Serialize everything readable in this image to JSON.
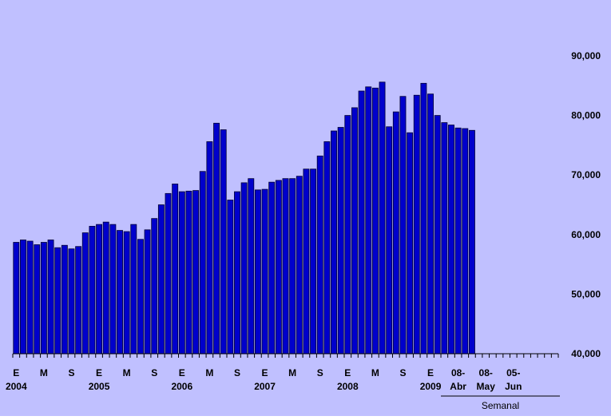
{
  "chart_data": {
    "type": "bar",
    "title": "",
    "xlabel": "",
    "ylabel": "",
    "ylim": [
      40000,
      95000
    ],
    "y_ticks": [
      40000,
      50000,
      60000,
      70000,
      80000,
      90000
    ],
    "y_tick_labels": [
      "40,000",
      "50,000",
      "60,000",
      "70,000",
      "80,000",
      "90,000"
    ],
    "y_axis_side": "right",
    "grid": false,
    "legend": "none",
    "colors": {
      "background": "#c0c0ff",
      "bar": "#0000cc",
      "bar_edge": "#000033",
      "text": "#000000"
    },
    "categories": [
      "2004-01",
      "2004-02",
      "2004-03",
      "2004-04",
      "2004-05",
      "2004-06",
      "2004-07",
      "2004-08",
      "2004-09",
      "2004-10",
      "2004-11",
      "2004-12",
      "2005-01",
      "2005-02",
      "2005-03",
      "2005-04",
      "2005-05",
      "2005-06",
      "2005-07",
      "2005-08",
      "2005-09",
      "2005-10",
      "2005-11",
      "2005-12",
      "2006-01",
      "2006-02",
      "2006-03",
      "2006-04",
      "2006-05",
      "2006-06",
      "2006-07",
      "2006-08",
      "2006-09",
      "2006-10",
      "2006-11",
      "2006-12",
      "2007-01",
      "2007-02",
      "2007-03",
      "2007-04",
      "2007-05",
      "2007-06",
      "2007-07",
      "2007-08",
      "2007-09",
      "2007-10",
      "2007-11",
      "2007-12",
      "2008-01",
      "2008-02",
      "2008-03",
      "2008-04",
      "2008-05",
      "2008-06",
      "2008-07",
      "2008-08",
      "2008-09",
      "2008-10",
      "2008-11",
      "2008-12",
      "2009-01",
      "2009-02",
      "2009-03",
      "2009-04",
      "2009-04-15",
      "2009-04-22",
      "2009-04-29"
    ],
    "values": [
      58700,
      59100,
      58900,
      58300,
      58700,
      59100,
      57800,
      58200,
      57600,
      58000,
      60300,
      61400,
      61700,
      62100,
      61700,
      60700,
      60500,
      61700,
      59200,
      60800,
      62700,
      65000,
      66900,
      68500,
      67200,
      67300,
      67400,
      70600,
      75600,
      78700,
      77600,
      65800,
      67200,
      68700,
      69400,
      67500,
      67600,
      68800,
      69100,
      69400,
      69400,
      69800,
      71000,
      71000,
      73200,
      75600,
      77400,
      78000,
      80000,
      81300,
      84100,
      84800,
      84600,
      85600,
      78100,
      80600,
      83200,
      77100,
      83400,
      85400,
      83600,
      80000,
      78800,
      78400,
      77900,
      77800,
      77500
    ],
    "weekly_slots": 12,
    "x_tick_labels": [
      {
        "month": "E",
        "year": "2004",
        "index": 0
      },
      {
        "month": "M",
        "index": 4
      },
      {
        "month": "S",
        "index": 8
      },
      {
        "month": "E",
        "year": "2005",
        "index": 12
      },
      {
        "month": "M",
        "index": 16
      },
      {
        "month": "S",
        "index": 20
      },
      {
        "month": "E",
        "year": "2006",
        "index": 24
      },
      {
        "month": "M",
        "index": 28
      },
      {
        "month": "S",
        "index": 32
      },
      {
        "month": "E",
        "year": "2007",
        "index": 36
      },
      {
        "month": "M",
        "index": 40
      },
      {
        "month": "S",
        "index": 44
      },
      {
        "month": "E",
        "year": "2008",
        "index": 48
      },
      {
        "month": "M",
        "index": 52
      },
      {
        "month": "S",
        "index": 56
      },
      {
        "month": "E",
        "year": "2009",
        "index": 60
      }
    ],
    "weekly_labels": [
      {
        "line1": "08-",
        "line2": "Abr",
        "index": 64
      },
      {
        "line1": "08-",
        "line2": "May",
        "index": 68
      },
      {
        "line1": "05-",
        "line2": "Jun",
        "index": 72
      }
    ],
    "weekly_section_label": "Semanal"
  }
}
